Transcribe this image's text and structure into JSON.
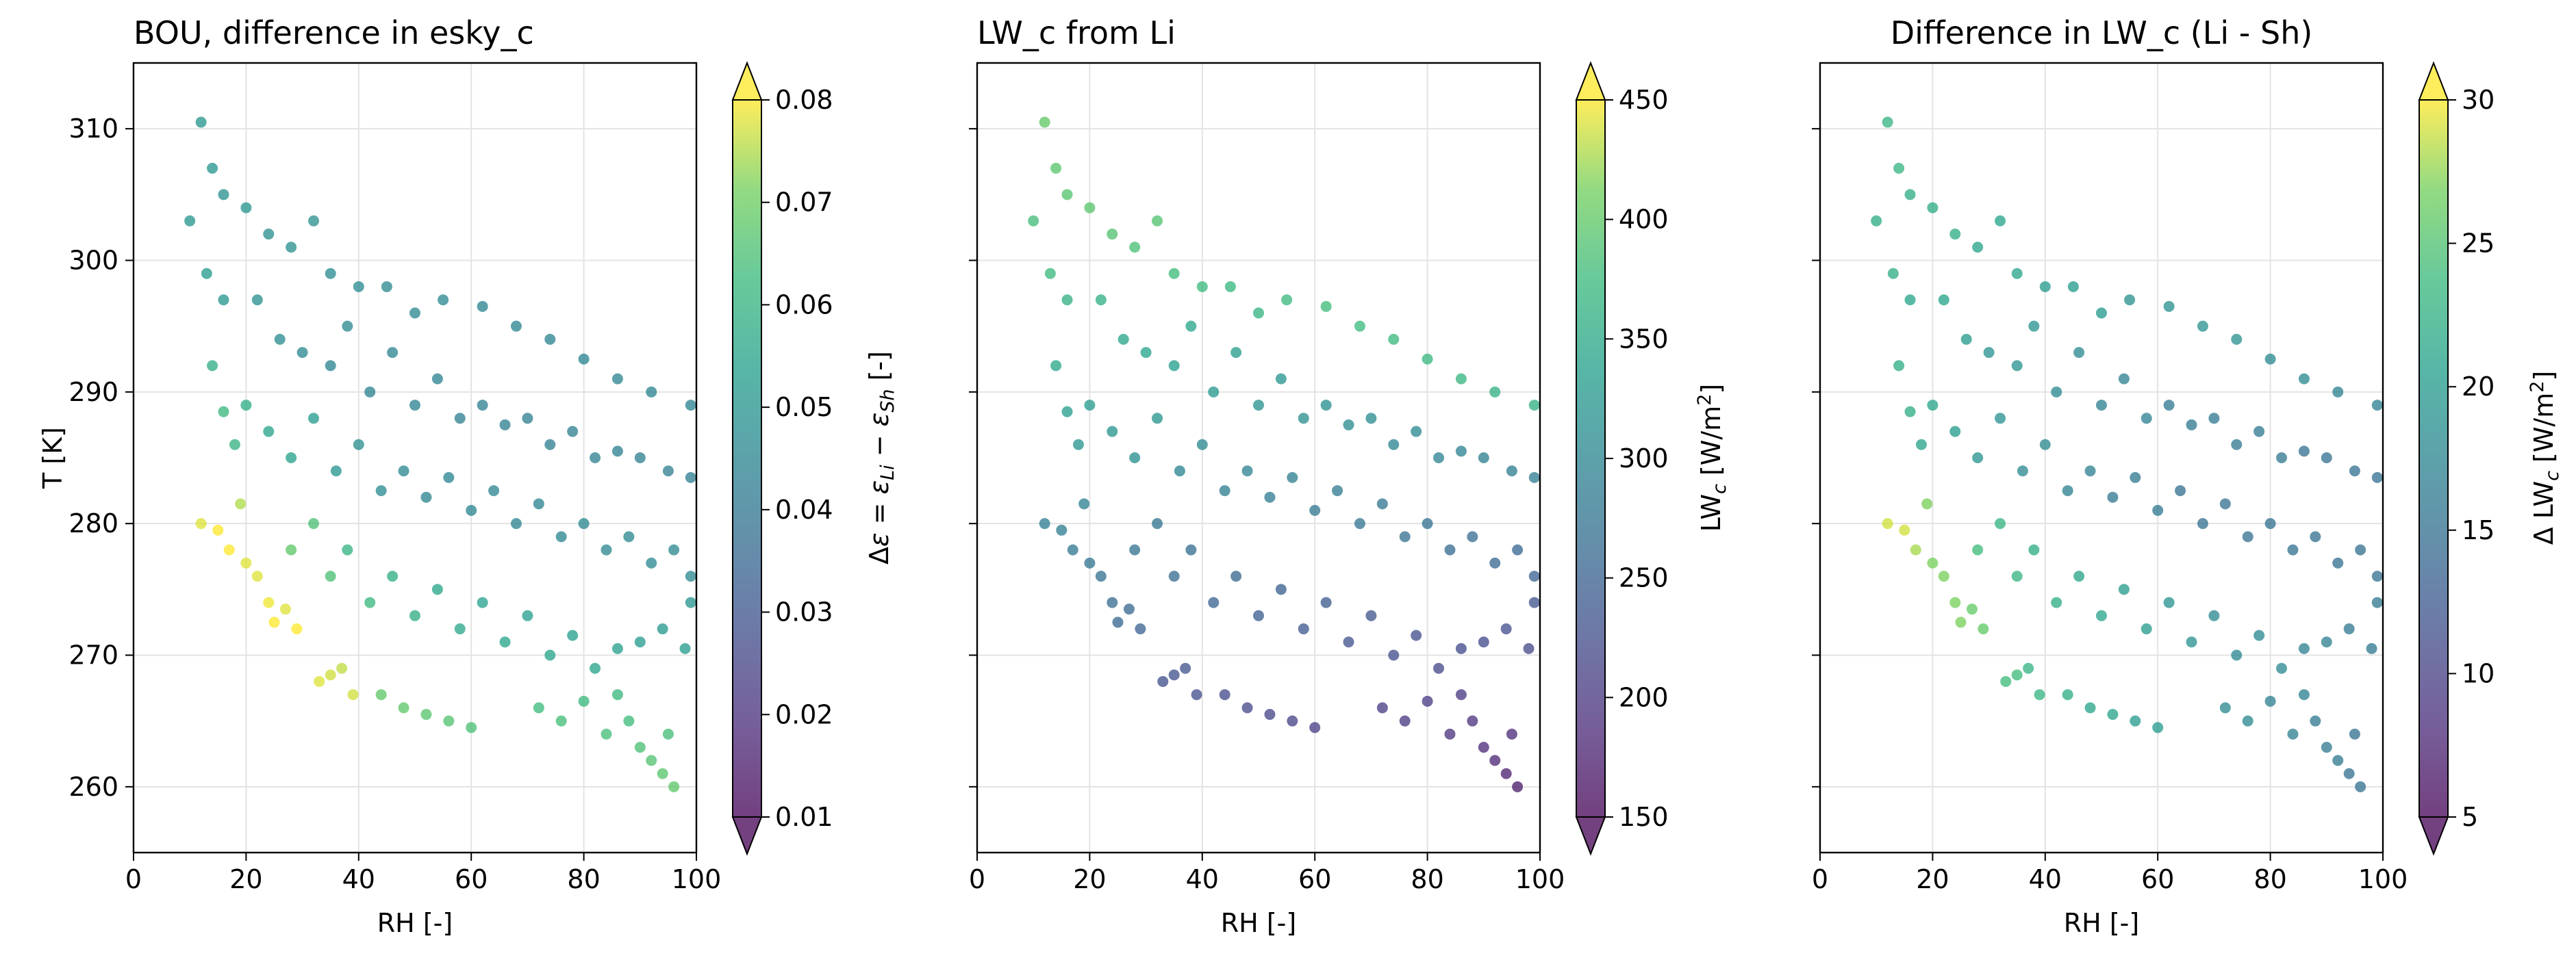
{
  "chart_data": [
    {
      "type": "scatter",
      "title": "BOU, difference in esky_c",
      "xlabel": "RH [-]",
      "ylabel": "T [K]",
      "xlim": [
        0,
        100
      ],
      "ylim": [
        255,
        315
      ],
      "xticks": [
        "0",
        "20",
        "40",
        "60",
        "80",
        "100"
      ],
      "yticks": [
        "260",
        "270",
        "280",
        "290",
        "300",
        "310"
      ],
      "grid": true,
      "colorbar": {
        "label": "Δε = ε_Li − ε_Sh [-]",
        "range": [
          0.01,
          0.08
        ],
        "ticks": [
          "0.01",
          "0.02",
          "0.03",
          "0.04",
          "0.05",
          "0.06",
          "0.07",
          "0.08"
        ],
        "colormap": "viridis",
        "extend": "both"
      },
      "color_field": "diff_eps"
    },
    {
      "type": "scatter",
      "title": "LW_c from Li",
      "xlabel": "RH [-]",
      "ylabel": "",
      "xlim": [
        0,
        100
      ],
      "ylim": [
        255,
        315
      ],
      "xticks": [
        "0",
        "20",
        "40",
        "60",
        "80",
        "100"
      ],
      "yticks": [],
      "grid": true,
      "colorbar": {
        "label": "LW_c [W/m²]",
        "range": [
          150,
          450
        ],
        "ticks": [
          "150",
          "200",
          "250",
          "300",
          "350",
          "400",
          "450"
        ],
        "colormap": "viridis",
        "extend": "both"
      },
      "color_field": "lw_li"
    },
    {
      "type": "scatter",
      "title": "Difference in LW_c (Li - Sh)",
      "xlabel": "RH [-]",
      "ylabel": "",
      "xlim": [
        0,
        100
      ],
      "ylim": [
        255,
        315
      ],
      "xticks": [
        "0",
        "20",
        "40",
        "60",
        "80",
        "100"
      ],
      "yticks": [],
      "grid": true,
      "colorbar": {
        "label": "Δ LW_c [W/m²]",
        "range": [
          5,
          30
        ],
        "ticks": [
          "5",
          "10",
          "15",
          "20",
          "25",
          "30"
        ],
        "colormap": "viridis",
        "extend": "both"
      },
      "color_field": "diff_lw"
    }
  ],
  "points": [
    {
      "rh": 12,
      "t": 310.5,
      "diff_eps": 0.05,
      "lw_li": 400,
      "diff_lw": 23
    },
    {
      "rh": 14,
      "t": 307,
      "diff_eps": 0.05,
      "lw_li": 395,
      "diff_lw": 23
    },
    {
      "rh": 16,
      "t": 305,
      "diff_eps": 0.048,
      "lw_li": 392,
      "diff_lw": 22
    },
    {
      "rh": 20,
      "t": 304,
      "diff_eps": 0.05,
      "lw_li": 395,
      "diff_lw": 22
    },
    {
      "rh": 24,
      "t": 302,
      "diff_eps": 0.048,
      "lw_li": 390,
      "diff_lw": 22
    },
    {
      "rh": 28,
      "t": 301,
      "diff_eps": 0.048,
      "lw_li": 385,
      "diff_lw": 21
    },
    {
      "rh": 32,
      "t": 303,
      "diff_eps": 0.048,
      "lw_li": 390,
      "diff_lw": 21
    },
    {
      "rh": 35,
      "t": 299,
      "diff_eps": 0.047,
      "lw_li": 378,
      "diff_lw": 21
    },
    {
      "rh": 40,
      "t": 298,
      "diff_eps": 0.047,
      "lw_li": 375,
      "diff_lw": 20
    },
    {
      "rh": 45,
      "t": 298,
      "diff_eps": 0.046,
      "lw_li": 370,
      "diff_lw": 20
    },
    {
      "rh": 50,
      "t": 296,
      "diff_eps": 0.046,
      "lw_li": 365,
      "diff_lw": 20
    },
    {
      "rh": 55,
      "t": 297,
      "diff_eps": 0.046,
      "lw_li": 372,
      "diff_lw": 19
    },
    {
      "rh": 62,
      "t": 296.5,
      "diff_eps": 0.045,
      "lw_li": 378,
      "diff_lw": 19
    },
    {
      "rh": 68,
      "t": 295,
      "diff_eps": 0.045,
      "lw_li": 376,
      "diff_lw": 19
    },
    {
      "rh": 74,
      "t": 294,
      "diff_eps": 0.045,
      "lw_li": 375,
      "diff_lw": 19
    },
    {
      "rh": 80,
      "t": 292.5,
      "diff_eps": 0.045,
      "lw_li": 372,
      "diff_lw": 18
    },
    {
      "rh": 86,
      "t": 291,
      "diff_eps": 0.045,
      "lw_li": 368,
      "diff_lw": 18
    },
    {
      "rh": 92,
      "t": 290,
      "diff_eps": 0.045,
      "lw_li": 363,
      "diff_lw": 17
    },
    {
      "rh": 99,
      "t": 289,
      "diff_eps": 0.045,
      "lw_li": 360,
      "diff_lw": 17
    },
    {
      "rh": 10,
      "t": 303,
      "diff_eps": 0.05,
      "lw_li": 380,
      "diff_lw": 22
    },
    {
      "rh": 13,
      "t": 299,
      "diff_eps": 0.052,
      "lw_li": 372,
      "diff_lw": 22
    },
    {
      "rh": 16,
      "t": 297,
      "diff_eps": 0.05,
      "lw_li": 362,
      "diff_lw": 21
    },
    {
      "rh": 22,
      "t": 297,
      "diff_eps": 0.048,
      "lw_li": 358,
      "diff_lw": 21
    },
    {
      "rh": 26,
      "t": 294,
      "diff_eps": 0.047,
      "lw_li": 345,
      "diff_lw": 20
    },
    {
      "rh": 30,
      "t": 293,
      "diff_eps": 0.046,
      "lw_li": 340,
      "diff_lw": 19
    },
    {
      "rh": 35,
      "t": 292,
      "diff_eps": 0.045,
      "lw_li": 335,
      "diff_lw": 19
    },
    {
      "rh": 38,
      "t": 295,
      "diff_eps": 0.046,
      "lw_li": 345,
      "diff_lw": 19
    },
    {
      "rh": 42,
      "t": 290,
      "diff_eps": 0.044,
      "lw_li": 325,
      "diff_lw": 18
    },
    {
      "rh": 46,
      "t": 293,
      "diff_eps": 0.045,
      "lw_li": 332,
      "diff_lw": 18
    },
    {
      "rh": 50,
      "t": 289,
      "diff_eps": 0.044,
      "lw_li": 318,
      "diff_lw": 17
    },
    {
      "rh": 54,
      "t": 291,
      "diff_eps": 0.044,
      "lw_li": 322,
      "diff_lw": 17
    },
    {
      "rh": 58,
      "t": 288,
      "diff_eps": 0.043,
      "lw_li": 312,
      "diff_lw": 17
    },
    {
      "rh": 62,
      "t": 289,
      "diff_eps": 0.043,
      "lw_li": 314,
      "diff_lw": 16
    },
    {
      "rh": 66,
      "t": 287.5,
      "diff_eps": 0.043,
      "lw_li": 308,
      "diff_lw": 16
    },
    {
      "rh": 70,
      "t": 288,
      "diff_eps": 0.043,
      "lw_li": 308,
      "diff_lw": 16
    },
    {
      "rh": 74,
      "t": 286,
      "diff_eps": 0.043,
      "lw_li": 300,
      "diff_lw": 16
    },
    {
      "rh": 78,
      "t": 287,
      "diff_eps": 0.043,
      "lw_li": 303,
      "diff_lw": 16
    },
    {
      "rh": 82,
      "t": 285,
      "diff_eps": 0.043,
      "lw_li": 295,
      "diff_lw": 16
    },
    {
      "rh": 86,
      "t": 285.5,
      "diff_eps": 0.043,
      "lw_li": 296,
      "diff_lw": 15
    },
    {
      "rh": 90,
      "t": 285,
      "diff_eps": 0.043,
      "lw_li": 292,
      "diff_lw": 15
    },
    {
      "rh": 95,
      "t": 284,
      "diff_eps": 0.043,
      "lw_li": 290,
      "diff_lw": 15
    },
    {
      "rh": 99,
      "t": 283.5,
      "diff_eps": 0.043,
      "lw_li": 288,
      "diff_lw": 15
    },
    {
      "rh": 14,
      "t": 292,
      "diff_eps": 0.058,
      "lw_li": 345,
      "diff_lw": 22
    },
    {
      "rh": 16,
      "t": 288.5,
      "diff_eps": 0.062,
      "lw_li": 333,
      "diff_lw": 22
    },
    {
      "rh": 18,
      "t": 286,
      "diff_eps": 0.06,
      "lw_li": 322,
      "diff_lw": 21
    },
    {
      "rh": 20,
      "t": 289,
      "diff_eps": 0.058,
      "lw_li": 330,
      "diff_lw": 21
    },
    {
      "rh": 24,
      "t": 287,
      "diff_eps": 0.055,
      "lw_li": 322,
      "diff_lw": 20
    },
    {
      "rh": 28,
      "t": 285,
      "diff_eps": 0.054,
      "lw_li": 312,
      "diff_lw": 19
    },
    {
      "rh": 32,
      "t": 288,
      "diff_eps": 0.052,
      "lw_li": 322,
      "diff_lw": 19
    },
    {
      "rh": 36,
      "t": 284,
      "diff_eps": 0.05,
      "lw_li": 300,
      "diff_lw": 18
    },
    {
      "rh": 40,
      "t": 286,
      "diff_eps": 0.048,
      "lw_li": 306,
      "diff_lw": 18
    },
    {
      "rh": 44,
      "t": 282.5,
      "diff_eps": 0.047,
      "lw_li": 290,
      "diff_lw": 17
    },
    {
      "rh": 48,
      "t": 284,
      "diff_eps": 0.046,
      "lw_li": 295,
      "diff_lw": 17
    },
    {
      "rh": 52,
      "t": 282,
      "diff_eps": 0.045,
      "lw_li": 287,
      "diff_lw": 16
    },
    {
      "rh": 56,
      "t": 283.5,
      "diff_eps": 0.045,
      "lw_li": 290,
      "diff_lw": 16
    },
    {
      "rh": 60,
      "t": 281,
      "diff_eps": 0.045,
      "lw_li": 280,
      "diff_lw": 16
    },
    {
      "rh": 64,
      "t": 282.5,
      "diff_eps": 0.045,
      "lw_li": 284,
      "diff_lw": 15
    },
    {
      "rh": 68,
      "t": 280,
      "diff_eps": 0.045,
      "lw_li": 275,
      "diff_lw": 15
    },
    {
      "rh": 72,
      "t": 281.5,
      "diff_eps": 0.045,
      "lw_li": 278,
      "diff_lw": 15
    },
    {
      "rh": 76,
      "t": 279,
      "diff_eps": 0.045,
      "lw_li": 268,
      "diff_lw": 15
    },
    {
      "rh": 80,
      "t": 280,
      "diff_eps": 0.046,
      "lw_li": 270,
      "diff_lw": 15
    },
    {
      "rh": 84,
      "t": 278,
      "diff_eps": 0.046,
      "lw_li": 262,
      "diff_lw": 15
    },
    {
      "rh": 88,
      "t": 279,
      "diff_eps": 0.046,
      "lw_li": 264,
      "diff_lw": 15
    },
    {
      "rh": 92,
      "t": 277,
      "diff_eps": 0.046,
      "lw_li": 257,
      "diff_lw": 15
    },
    {
      "rh": 96,
      "t": 278,
      "diff_eps": 0.046,
      "lw_li": 258,
      "diff_lw": 15
    },
    {
      "rh": 99,
      "t": 276,
      "diff_eps": 0.046,
      "lw_li": 252,
      "diff_lw": 15
    },
    {
      "rh": 12,
      "t": 280,
      "diff_eps": 0.078,
      "lw_li": 290,
      "diff_lw": 29
    },
    {
      "rh": 15,
      "t": 279.5,
      "diff_eps": 0.08,
      "lw_li": 287,
      "diff_lw": 29
    },
    {
      "rh": 17,
      "t": 278,
      "diff_eps": 0.08,
      "lw_li": 280,
      "diff_lw": 28
    },
    {
      "rh": 19,
      "t": 281.5,
      "diff_eps": 0.075,
      "lw_li": 292,
      "diff_lw": 27
    },
    {
      "rh": 20,
      "t": 277,
      "diff_eps": 0.078,
      "lw_li": 275,
      "diff_lw": 27
    },
    {
      "rh": 22,
      "t": 276,
      "diff_eps": 0.078,
      "lw_li": 270,
      "diff_lw": 27
    },
    {
      "rh": 24,
      "t": 274,
      "diff_eps": 0.079,
      "lw_li": 262,
      "diff_lw": 27
    },
    {
      "rh": 25,
      "t": 272.5,
      "diff_eps": 0.08,
      "lw_li": 256,
      "diff_lw": 27
    },
    {
      "rh": 27,
      "t": 273.5,
      "diff_eps": 0.078,
      "lw_li": 258,
      "diff_lw": 26
    },
    {
      "rh": 29,
      "t": 272,
      "diff_eps": 0.08,
      "lw_li": 252,
      "diff_lw": 26
    },
    {
      "rh": 28,
      "t": 278,
      "diff_eps": 0.068,
      "lw_li": 272,
      "diff_lw": 24
    },
    {
      "rh": 32,
      "t": 280,
      "diff_eps": 0.065,
      "lw_li": 275,
      "diff_lw": 23
    },
    {
      "rh": 35,
      "t": 276,
      "diff_eps": 0.065,
      "lw_li": 262,
      "diff_lw": 23
    },
    {
      "rh": 38,
      "t": 278,
      "diff_eps": 0.06,
      "lw_li": 265,
      "diff_lw": 22
    },
    {
      "rh": 42,
      "t": 274,
      "diff_eps": 0.062,
      "lw_li": 252,
      "diff_lw": 22
    },
    {
      "rh": 46,
      "t": 276,
      "diff_eps": 0.058,
      "lw_li": 256,
      "diff_lw": 21
    },
    {
      "rh": 50,
      "t": 273,
      "diff_eps": 0.058,
      "lw_li": 245,
      "diff_lw": 21
    },
    {
      "rh": 54,
      "t": 275,
      "diff_eps": 0.055,
      "lw_li": 248,
      "diff_lw": 20
    },
    {
      "rh": 58,
      "t": 272,
      "diff_eps": 0.056,
      "lw_li": 238,
      "diff_lw": 20
    },
    {
      "rh": 62,
      "t": 274,
      "diff_eps": 0.054,
      "lw_li": 242,
      "diff_lw": 19
    },
    {
      "rh": 66,
      "t": 271,
      "diff_eps": 0.055,
      "lw_li": 232,
      "diff_lw": 19
    },
    {
      "rh": 70,
      "t": 273,
      "diff_eps": 0.053,
      "lw_li": 235,
      "diff_lw": 18
    },
    {
      "rh": 74,
      "t": 270,
      "diff_eps": 0.055,
      "lw_li": 225,
      "diff_lw": 18
    },
    {
      "rh": 78,
      "t": 271.5,
      "diff_eps": 0.053,
      "lw_li": 228,
      "diff_lw": 18
    },
    {
      "rh": 82,
      "t": 269,
      "diff_eps": 0.055,
      "lw_li": 218,
      "diff_lw": 18
    },
    {
      "rh": 86,
      "t": 270.5,
      "diff_eps": 0.053,
      "lw_li": 222,
      "diff_lw": 17
    },
    {
      "rh": 90,
      "t": 271,
      "diff_eps": 0.052,
      "lw_li": 222,
      "diff_lw": 17
    },
    {
      "rh": 94,
      "t": 272,
      "diff_eps": 0.051,
      "lw_li": 225,
      "diff_lw": 16
    },
    {
      "rh": 98,
      "t": 270.5,
      "diff_eps": 0.052,
      "lw_li": 220,
      "diff_lw": 16
    },
    {
      "rh": 99,
      "t": 274,
      "diff_eps": 0.05,
      "lw_li": 232,
      "diff_lw": 16
    },
    {
      "rh": 33,
      "t": 268,
      "diff_eps": 0.078,
      "lw_li": 228,
      "diff_lw": 24
    },
    {
      "rh": 35,
      "t": 268.5,
      "diff_eps": 0.077,
      "lw_li": 230,
      "diff_lw": 24
    },
    {
      "rh": 37,
      "t": 269,
      "diff_eps": 0.076,
      "lw_li": 232,
      "diff_lw": 23
    },
    {
      "rh": 39,
      "t": 267,
      "diff_eps": 0.077,
      "lw_li": 226,
      "diff_lw": 23
    },
    {
      "rh": 44,
      "t": 267,
      "diff_eps": 0.068,
      "lw_li": 222,
      "diff_lw": 22
    },
    {
      "rh": 48,
      "t": 266,
      "diff_eps": 0.068,
      "lw_li": 218,
      "diff_lw": 21
    },
    {
      "rh": 52,
      "t": 265.5,
      "diff_eps": 0.067,
      "lw_li": 215,
      "diff_lw": 21
    },
    {
      "rh": 56,
      "t": 265,
      "diff_eps": 0.066,
      "lw_li": 212,
      "diff_lw": 20
    },
    {
      "rh": 60,
      "t": 264.5,
      "diff_eps": 0.065,
      "lw_li": 208,
      "diff_lw": 20
    },
    {
      "rh": 72,
      "t": 266,
      "diff_eps": 0.063,
      "lw_li": 205,
      "diff_lw": 18
    },
    {
      "rh": 76,
      "t": 265,
      "diff_eps": 0.064,
      "lw_li": 200,
      "diff_lw": 18
    },
    {
      "rh": 80,
      "t": 266.5,
      "diff_eps": 0.062,
      "lw_li": 202,
      "diff_lw": 17
    },
    {
      "rh": 84,
      "t": 264,
      "diff_eps": 0.064,
      "lw_li": 192,
      "diff_lw": 17
    },
    {
      "rh": 86,
      "t": 267,
      "diff_eps": 0.062,
      "lw_li": 200,
      "diff_lw": 17
    },
    {
      "rh": 88,
      "t": 265,
      "diff_eps": 0.063,
      "lw_li": 192,
      "diff_lw": 16
    },
    {
      "rh": 90,
      "t": 263,
      "diff_eps": 0.065,
      "lw_li": 185,
      "diff_lw": 16
    },
    {
      "rh": 92,
      "t": 262,
      "diff_eps": 0.066,
      "lw_li": 180,
      "diff_lw": 16
    },
    {
      "rh": 94,
      "t": 261,
      "diff_eps": 0.067,
      "lw_li": 175,
      "diff_lw": 15
    },
    {
      "rh": 96,
      "t": 260,
      "diff_eps": 0.068,
      "lw_li": 170,
      "diff_lw": 15
    },
    {
      "rh": 95,
      "t": 264,
      "diff_eps": 0.064,
      "lw_li": 185,
      "diff_lw": 15
    }
  ]
}
